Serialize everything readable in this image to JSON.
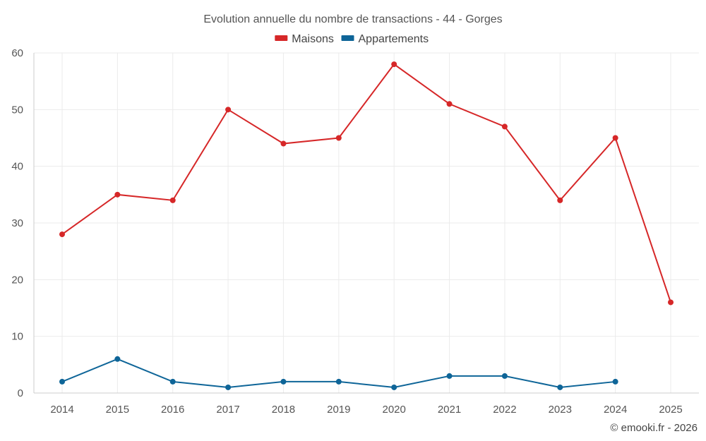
{
  "chart_data": {
    "type": "line",
    "title": "Evolution annuelle du nombre de transactions - 44 - Gorges",
    "categories": [
      "2014",
      "2015",
      "2016",
      "2017",
      "2018",
      "2019",
      "2020",
      "2021",
      "2022",
      "2023",
      "2024",
      "2025"
    ],
    "series": [
      {
        "name": "Maisons",
        "color": "#d62728",
        "values": [
          28,
          35,
          34,
          50,
          44,
          45,
          58,
          51,
          47,
          34,
          45,
          16
        ]
      },
      {
        "name": "Appartements",
        "color": "#0e6598",
        "values": [
          2,
          6,
          2,
          1,
          2,
          2,
          1,
          3,
          3,
          1,
          2,
          null
        ]
      }
    ],
    "ylim": [
      0,
      60
    ],
    "yticks": [
      0,
      10,
      20,
      30,
      40,
      50,
      60
    ],
    "xlabel": "",
    "ylabel": "",
    "grid": true,
    "legend_position": "top-center"
  },
  "footer": {
    "copyright": "© emooki.fr - 2026"
  }
}
